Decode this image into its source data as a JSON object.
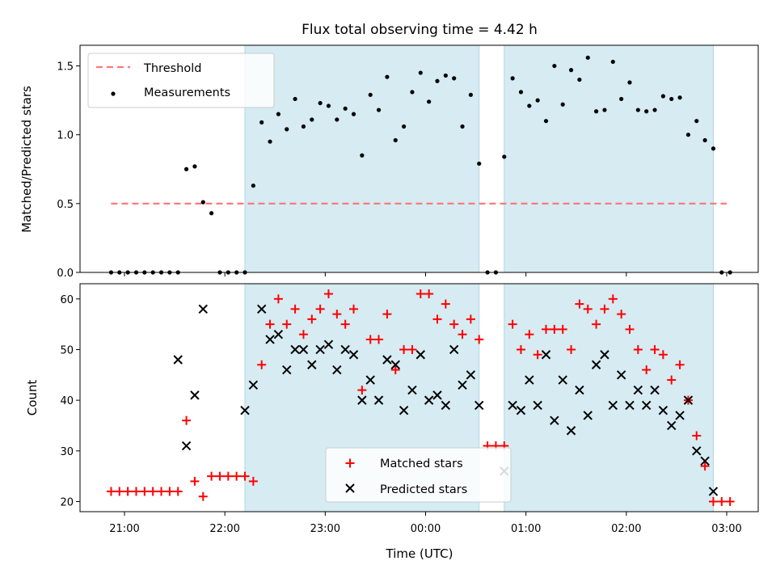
{
  "chart_data": {
    "type": "scatter",
    "title": "Flux total observing time = 4.42 h",
    "xlabel": "Time (UTC)",
    "x_unit": "hours UTC",
    "x_ticks": [
      "21:00",
      "22:00",
      "23:00",
      "00:00",
      "01:00",
      "02:00",
      "03:00"
    ],
    "shaded_intervals": [
      [
        "22:12",
        "00:32"
      ],
      [
        "00:47",
        "02:52"
      ]
    ],
    "colors": {
      "threshold": "#ff7a7a",
      "measurements": "#000000",
      "matched": "#ff0000",
      "predicted": "#000000",
      "shade": "#add8e6"
    },
    "top_panel": {
      "ylabel": "Matched/Predicted stars",
      "ylim": [
        0,
        1.65
      ],
      "y_ticks": [
        "0.0",
        "0.5",
        "1.0",
        "1.5"
      ],
      "legend_position": "top-left",
      "threshold": {
        "name": "Threshold",
        "value": 0.5,
        "x_range": [
          "20:52",
          "03:00"
        ]
      },
      "measurements": {
        "name": "Measurements",
        "x": [
          "20:52",
          "20:57",
          "21:02",
          "21:07",
          "21:12",
          "21:17",
          "21:22",
          "21:27",
          "21:32",
          "21:37",
          "21:42",
          "21:47",
          "21:52",
          "21:57",
          "22:02",
          "22:07",
          "22:12",
          "22:17",
          "22:22",
          "22:27",
          "22:32",
          "22:37",
          "22:42",
          "22:47",
          "22:52",
          "22:57",
          "23:02",
          "23:07",
          "23:12",
          "23:17",
          "23:22",
          "23:27",
          "23:32",
          "23:37",
          "23:42",
          "23:47",
          "23:52",
          "23:57",
          "00:02",
          "00:07",
          "00:12",
          "00:17",
          "00:22",
          "00:27",
          "00:32",
          "00:37",
          "00:42",
          "00:47",
          "00:52",
          "00:57",
          "01:02",
          "01:07",
          "01:12",
          "01:17",
          "01:22",
          "01:27",
          "01:32",
          "01:37",
          "01:42",
          "01:47",
          "01:52",
          "01:57",
          "02:02",
          "02:07",
          "02:12",
          "02:17",
          "02:22",
          "02:27",
          "02:32",
          "02:37",
          "02:42",
          "02:47",
          "02:52",
          "02:57",
          "03:02"
        ],
        "y": [
          0,
          0,
          0,
          0,
          0,
          0,
          0,
          0,
          0,
          0.75,
          0.77,
          0.51,
          0.43,
          0,
          0,
          0,
          0,
          0.63,
          1.09,
          0.95,
          1.15,
          1.04,
          1.26,
          1.06,
          1.11,
          1.23,
          1.21,
          1.11,
          1.19,
          1.15,
          0.85,
          1.29,
          1.18,
          1.42,
          0.96,
          1.06,
          1.31,
          1.45,
          1.24,
          1.39,
          1.43,
          1.41,
          1.06,
          1.29,
          0.79,
          0,
          0,
          0.84,
          1.41,
          1.31,
          1.21,
          1.25,
          1.1,
          1.5,
          1.22,
          1.47,
          1.4,
          1.56,
          1.17,
          1.18,
          1.53,
          1.26,
          1.38,
          1.18,
          1.17,
          1.18,
          1.28,
          1.26,
          1.27,
          1.0,
          1.1,
          0.96,
          0.9,
          0,
          0
        ]
      }
    },
    "bottom_panel": {
      "ylabel": "Count",
      "ylim": [
        18,
        63
      ],
      "y_ticks": [
        "20",
        "30",
        "40",
        "50",
        "60"
      ],
      "legend_position": "bottom-center",
      "series": [
        {
          "name": "Matched stars",
          "marker": "+",
          "x": [
            "20:52",
            "20:57",
            "21:02",
            "21:07",
            "21:12",
            "21:17",
            "21:22",
            "21:27",
            "21:32",
            "21:37",
            "21:42",
            "21:47",
            "21:52",
            "21:57",
            "22:02",
            "22:07",
            "22:12",
            "22:17",
            "22:22",
            "22:27",
            "22:32",
            "22:37",
            "22:42",
            "22:47",
            "22:52",
            "22:57",
            "23:02",
            "23:07",
            "23:12",
            "23:17",
            "23:22",
            "23:27",
            "23:32",
            "23:37",
            "23:42",
            "23:47",
            "23:52",
            "23:57",
            "00:02",
            "00:07",
            "00:12",
            "00:17",
            "00:22",
            "00:27",
            "00:32",
            "00:37",
            "00:42",
            "00:47",
            "00:52",
            "00:57",
            "01:02",
            "01:07",
            "01:12",
            "01:17",
            "01:22",
            "01:27",
            "01:32",
            "01:37",
            "01:42",
            "01:47",
            "01:52",
            "01:57",
            "02:02",
            "02:07",
            "02:12",
            "02:17",
            "02:22",
            "02:27",
            "02:32",
            "02:37",
            "02:42",
            "02:47",
            "02:52",
            "02:57",
            "03:02"
          ],
          "values": [
            22,
            22,
            22,
            22,
            22,
            22,
            22,
            22,
            22,
            36,
            24,
            21,
            25,
            25,
            25,
            25,
            25,
            24,
            47,
            55,
            60,
            55,
            58,
            53,
            56,
            58,
            61,
            57,
            55,
            58,
            42,
            52,
            52,
            57,
            46,
            50,
            50,
            61,
            61,
            56,
            59,
            55,
            53,
            56,
            52,
            31,
            31,
            31,
            55,
            50,
            53,
            49,
            54,
            54,
            54,
            50,
            59,
            58,
            55,
            58,
            60,
            57,
            54,
            50,
            46,
            50,
            49,
            44,
            47,
            40,
            33,
            27,
            20,
            20,
            20
          ]
        },
        {
          "name": "Predicted stars",
          "marker": "x",
          "x": [
            "21:32",
            "21:37",
            "21:42",
            "21:47",
            "22:12",
            "22:17",
            "22:22",
            "22:27",
            "22:32",
            "22:37",
            "22:42",
            "22:47",
            "22:52",
            "22:57",
            "23:02",
            "23:07",
            "23:12",
            "23:17",
            "23:22",
            "23:27",
            "23:32",
            "23:37",
            "23:42",
            "23:47",
            "23:52",
            "23:57",
            "00:02",
            "00:07",
            "00:12",
            "00:17",
            "00:22",
            "00:27",
            "00:32",
            "00:47",
            "00:52",
            "00:57",
            "01:02",
            "01:07",
            "01:12",
            "01:17",
            "01:22",
            "01:27",
            "01:32",
            "01:37",
            "01:42",
            "01:47",
            "01:52",
            "01:57",
            "02:02",
            "02:07",
            "02:12",
            "02:17",
            "02:22",
            "02:27",
            "02:32",
            "02:37",
            "02:42",
            "02:47",
            "02:52"
          ],
          "values": [
            48,
            31,
            41,
            58,
            38,
            43,
            58,
            52,
            53,
            46,
            50,
            50,
            47,
            50,
            51,
            46,
            50,
            49,
            40,
            44,
            40,
            48,
            47,
            38,
            42,
            49,
            40,
            41,
            39,
            50,
            43,
            45,
            39,
            26,
            39,
            38,
            44,
            39,
            49,
            36,
            44,
            34,
            42,
            37,
            47,
            49,
            39,
            45,
            39,
            42,
            39,
            42,
            38,
            35,
            37,
            40,
            30,
            28,
            22
          ]
        }
      ]
    }
  }
}
